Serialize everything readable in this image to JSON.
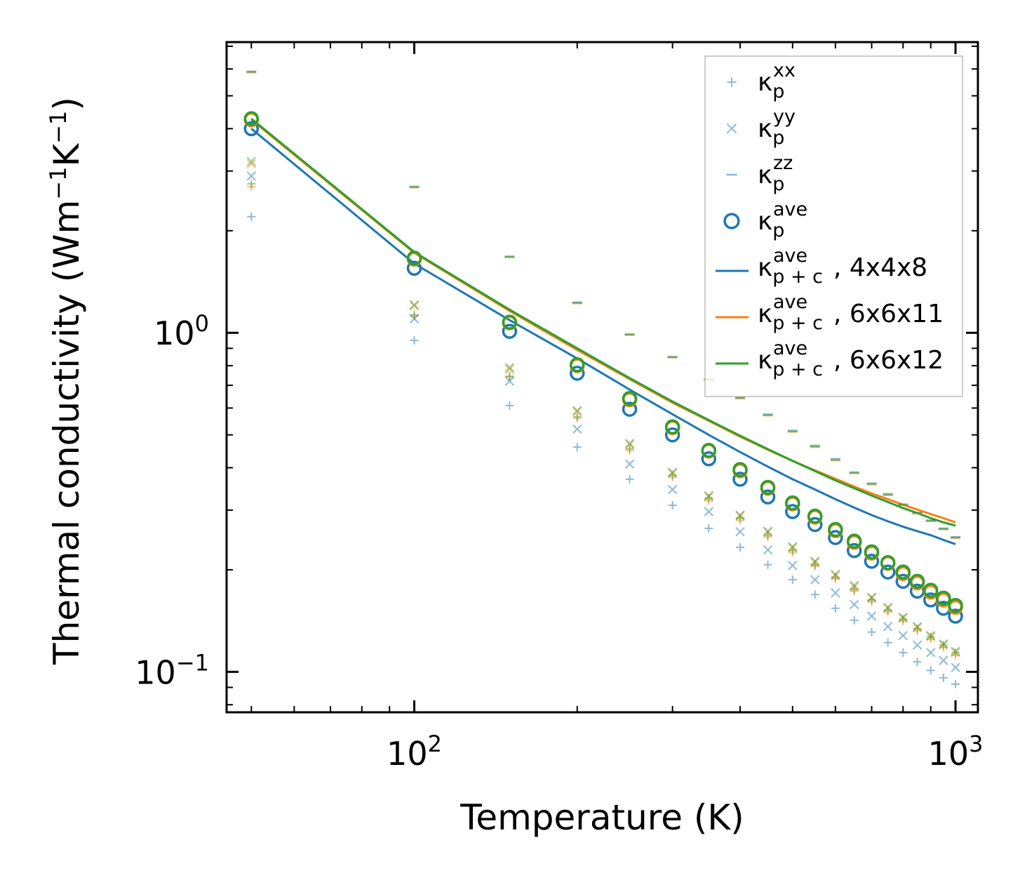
{
  "chart_data": {
    "type": "scatter",
    "xscale": "log",
    "yscale": "log",
    "xlabel": "Temperature (K)",
    "ylabel_prefix": "Thermal conductivity (Wm",
    "ylabel_exp1": "−1",
    "ylabel_mid": "K",
    "ylabel_exp2": "−1",
    "ylabel_suffix": ")",
    "xlim": [
      45,
      1100
    ],
    "ylim": [
      0.076,
      7.2
    ],
    "x_ticks": [
      {
        "value": 100,
        "base": "10",
        "exp": "2"
      },
      {
        "value": 1000,
        "base": "10",
        "exp": "3"
      }
    ],
    "y_ticks": [
      {
        "value": 0.1,
        "base": "10",
        "exp": "−1"
      },
      {
        "value": 1,
        "base": "10",
        "exp": "0"
      }
    ],
    "temperatures": [
      50,
      100,
      150,
      200,
      250,
      300,
      350,
      400,
      450,
      500,
      550,
      600,
      650,
      700,
      750,
      800,
      850,
      900,
      950,
      1000
    ],
    "series": [
      {
        "name": "κp_xx 4x4x8",
        "kind": "plus",
        "color": "#1f77b4",
        "alpha": 0.5,
        "values": [
          2.2,
          0.95,
          0.61,
          0.46,
          0.37,
          0.31,
          0.265,
          0.233,
          0.207,
          0.187,
          0.169,
          0.154,
          0.142,
          0.131,
          0.122,
          0.114,
          0.107,
          0.101,
          0.096,
          0.092
        ]
      },
      {
        "name": "κp_xx 6x6x11",
        "kind": "plus",
        "color": "#ff7f0e",
        "alpha": 0.5,
        "values": [
          2.7,
          1.12,
          0.74,
          0.56,
          0.45,
          0.375,
          0.32,
          0.28,
          0.25,
          0.225,
          0.205,
          0.188,
          0.173,
          0.161,
          0.15,
          0.141,
          0.132,
          0.125,
          0.118,
          0.112
        ]
      },
      {
        "name": "κp_xx 6x6x12",
        "kind": "plus",
        "color": "#2ca02c",
        "alpha": 0.5,
        "values": [
          2.75,
          1.13,
          0.745,
          0.565,
          0.455,
          0.38,
          0.325,
          0.284,
          0.253,
          0.228,
          0.207,
          0.19,
          0.175,
          0.163,
          0.152,
          0.143,
          0.134,
          0.127,
          0.12,
          0.114
        ]
      },
      {
        "name": "κp_yy 4x4x8",
        "kind": "cross",
        "color": "#1f77b4",
        "alpha": 0.5,
        "values": [
          2.9,
          1.1,
          0.72,
          0.52,
          0.41,
          0.345,
          0.297,
          0.259,
          0.229,
          0.206,
          0.187,
          0.171,
          0.158,
          0.146,
          0.136,
          0.128,
          0.12,
          0.114,
          0.108,
          0.103
        ]
      },
      {
        "name": "κp_yy 6x6x11",
        "kind": "cross",
        "color": "#ff7f0e",
        "alpha": 0.5,
        "values": [
          3.15,
          1.2,
          0.78,
          0.585,
          0.468,
          0.385,
          0.328,
          0.288,
          0.258,
          0.232,
          0.21,
          0.192,
          0.178,
          0.165,
          0.154,
          0.144,
          0.135,
          0.127,
          0.12,
          0.114
        ]
      },
      {
        "name": "κp_yy 6x6x12",
        "kind": "cross",
        "color": "#2ca02c",
        "alpha": 0.5,
        "values": [
          3.2,
          1.21,
          0.79,
          0.59,
          0.472,
          0.388,
          0.331,
          0.29,
          0.26,
          0.234,
          0.212,
          0.194,
          0.18,
          0.166,
          0.155,
          0.145,
          0.136,
          0.128,
          0.121,
          0.115
        ]
      },
      {
        "name": "κp_zz 4x4x8",
        "kind": "hline",
        "color": "#1f77b4",
        "alpha": 0.5,
        "values": [
          5.9,
          2.7,
          1.68,
          1.23,
          0.99,
          0.85,
          0.73,
          0.645,
          0.575,
          0.515,
          0.465,
          0.425,
          0.388,
          0.36,
          0.335,
          0.312,
          0.295,
          0.28,
          0.265,
          0.25
        ]
      },
      {
        "name": "κp_zz 6x6x11",
        "kind": "hline",
        "color": "#ff7f0e",
        "alpha": 0.5,
        "values": [
          5.85,
          2.68,
          1.67,
          1.22,
          0.985,
          0.845,
          0.725,
          0.64,
          0.57,
          0.51,
          0.46,
          0.42,
          0.385,
          0.357,
          0.332,
          0.31,
          0.293,
          0.278,
          0.263,
          0.248
        ]
      },
      {
        "name": "κp_zz 6x6x12",
        "kind": "hline",
        "color": "#2ca02c",
        "alpha": 0.5,
        "values": [
          5.88,
          2.69,
          1.675,
          1.225,
          0.988,
          0.848,
          0.728,
          0.642,
          0.572,
          0.512,
          0.462,
          0.422,
          0.386,
          0.358,
          0.333,
          0.311,
          0.294,
          0.279,
          0.264,
          0.249
        ]
      },
      {
        "name": "κp_ave 4x4x8",
        "kind": "circle",
        "color": "#1f77b4",
        "alpha": 1,
        "values": [
          4.0,
          1.55,
          1.01,
          0.76,
          0.595,
          0.5,
          0.425,
          0.37,
          0.328,
          0.297,
          0.272,
          0.249,
          0.228,
          0.212,
          0.197,
          0.185,
          0.173,
          0.163,
          0.154,
          0.146
        ]
      },
      {
        "name": "κp_ave 6x6x11",
        "kind": "circle",
        "color": "#ff7f0e",
        "alpha": 1,
        "values": [
          4.25,
          1.65,
          1.07,
          0.8,
          0.635,
          0.525,
          0.448,
          0.392,
          0.348,
          0.313,
          0.286,
          0.261,
          0.241,
          0.224,
          0.209,
          0.195,
          0.183,
          0.172,
          0.163,
          0.155
        ]
      },
      {
        "name": "κp_ave 6x6x12",
        "kind": "circle",
        "color": "#2ca02c",
        "alpha": 1,
        "values": [
          4.28,
          1.66,
          1.075,
          0.805,
          0.64,
          0.528,
          0.45,
          0.395,
          0.35,
          0.315,
          0.288,
          0.263,
          0.243,
          0.226,
          0.21,
          0.197,
          0.185,
          0.174,
          0.165,
          0.157
        ]
      },
      {
        "name": "κp+c_ave 4x4x8",
        "kind": "line",
        "color": "#1f77b4",
        "values": [
          4.0,
          1.6,
          1.09,
          0.84,
          0.68,
          0.575,
          0.5,
          0.445,
          0.403,
          0.37,
          0.345,
          0.323,
          0.305,
          0.29,
          0.278,
          0.268,
          0.26,
          0.253,
          0.245,
          0.238
        ]
      },
      {
        "name": "κp+c_ave 6x6x11",
        "kind": "line",
        "color": "#ff7f0e",
        "values": [
          4.25,
          1.72,
          1.16,
          0.89,
          0.73,
          0.622,
          0.55,
          0.494,
          0.452,
          0.419,
          0.393,
          0.371,
          0.352,
          0.336,
          0.323,
          0.311,
          0.301,
          0.292,
          0.284,
          0.276
        ]
      },
      {
        "name": "κp+c_ave 6x6x12",
        "kind": "line",
        "color": "#2ca02c",
        "values": [
          4.28,
          1.73,
          1.17,
          0.9,
          0.735,
          0.627,
          0.553,
          0.497,
          0.454,
          0.419,
          0.391,
          0.367,
          0.348,
          0.331,
          0.317,
          0.304,
          0.294,
          0.284,
          0.276,
          0.27
        ]
      }
    ],
    "legend": {
      "position": "top-right",
      "entries": [
        {
          "kind": "plus",
          "color": "#1f77b4",
          "alpha": 0.5,
          "symbol": "κ",
          "sub": "p",
          "sup": "xx",
          "suffix": ""
        },
        {
          "kind": "cross",
          "color": "#1f77b4",
          "alpha": 0.5,
          "symbol": "κ",
          "sub": "p",
          "sup": "yy",
          "suffix": ""
        },
        {
          "kind": "hline",
          "color": "#1f77b4",
          "alpha": 0.5,
          "symbol": "κ",
          "sub": "p",
          "sup": "zz",
          "suffix": ""
        },
        {
          "kind": "circle",
          "color": "#1f77b4",
          "alpha": 1,
          "symbol": "κ",
          "sub": "p",
          "sup": "ave",
          "suffix": ""
        },
        {
          "kind": "line",
          "color": "#1f77b4",
          "alpha": 1,
          "symbol": "κ",
          "sub": "p + c",
          "sup": "ave",
          "suffix": ", 4x4x8"
        },
        {
          "kind": "line",
          "color": "#ff7f0e",
          "alpha": 1,
          "symbol": "κ",
          "sub": "p + c",
          "sup": "ave",
          "suffix": ", 6x6x11"
        },
        {
          "kind": "line",
          "color": "#2ca02c",
          "alpha": 1,
          "symbol": "κ",
          "sub": "p + c",
          "sup": "ave",
          "suffix": ", 6x6x12"
        }
      ]
    }
  }
}
